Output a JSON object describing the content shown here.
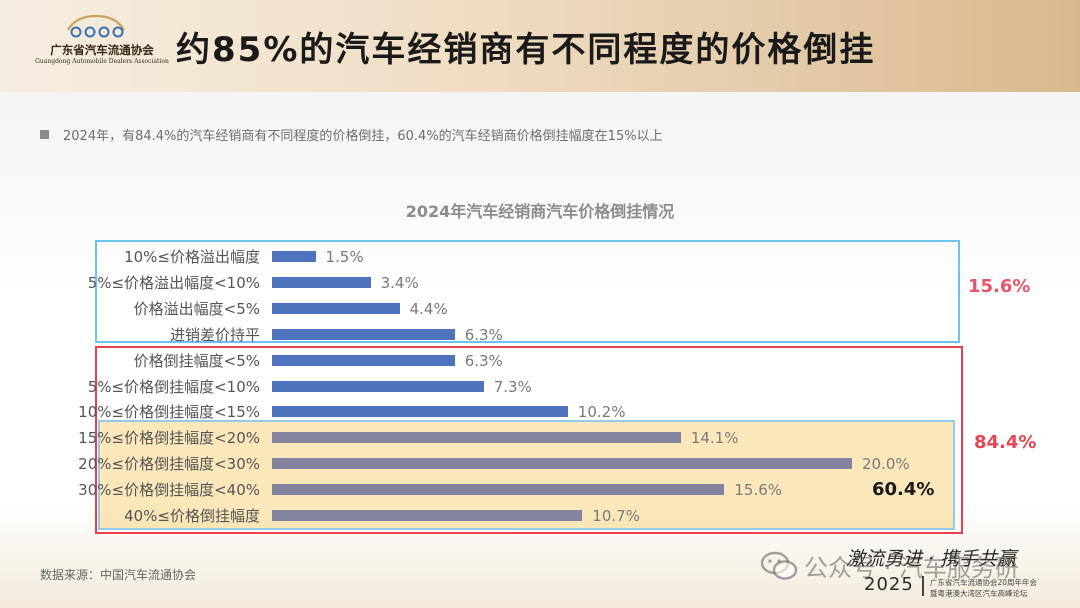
{
  "header": {
    "org_name_cn": "广东省汽车流通协会",
    "org_name_en": "Guangdong Automobile Dealers Association",
    "title": "约85%的汽车经销商有不同程度的价格倒挂"
  },
  "summary": "2024年，有84.4%的汽车经销商有不同程度的价格倒挂，60.4%的汽车经销商价格倒挂幅度在15%以上",
  "chart_data": {
    "type": "bar",
    "orientation": "horizontal",
    "title": "2024年汽车经销商汽车价格倒挂情况",
    "categories": [
      "10%≤价格溢出幅度",
      "5%≤价格溢出幅度<10%",
      "价格溢出幅度<5%",
      "进销差价持平",
      "价格倒挂幅度<5%",
      "5%≤价格倒挂幅度<10%",
      "10%≤价格倒挂幅度<15%",
      "15%≤价格倒挂幅度<20%",
      "20%≤价格倒挂幅度<30%",
      "30%≤价格倒挂幅度<40%",
      "40%≤价格倒挂幅度"
    ],
    "values": [
      1.5,
      3.4,
      4.4,
      6.3,
      6.3,
      7.3,
      10.2,
      14.1,
      20.0,
      15.6,
      10.7
    ],
    "value_labels": [
      "1.5%",
      "3.4%",
      "4.4%",
      "6.3%",
      "6.3%",
      "7.3%",
      "10.2%",
      "14.1%",
      "20.0%",
      "15.6%",
      "10.7%"
    ],
    "colors": [
      "#4f73bd",
      "#4f73bd",
      "#4f73bd",
      "#4f73bd",
      "#4f73bd",
      "#4f73bd",
      "#4f73bd",
      "#8383a0",
      "#8383a0",
      "#8383a0",
      "#8383a0"
    ],
    "xlim": [
      0,
      20
    ],
    "grid": false,
    "legend": "none",
    "groups": [
      {
        "label": "15.6%",
        "color": "#e8546a",
        "rows": [
          0,
          3
        ]
      },
      {
        "label": "84.4%",
        "color": "#e84550",
        "rows": [
          4,
          10
        ]
      },
      {
        "label": "60.4%",
        "color": "#1a1a1a",
        "rows": [
          7,
          10
        ]
      }
    ]
  },
  "source": "数据来源：中国汽车流通协会",
  "footer": {
    "slogan": "激流勇进 · 携手共赢",
    "year": "2025",
    "event_line1": "广东省汽车流通协会20周年年会",
    "event_line2": "暨粤港澳大湾区汽车高峰论坛",
    "watermark": "公众号 · 汽车服务研"
  }
}
